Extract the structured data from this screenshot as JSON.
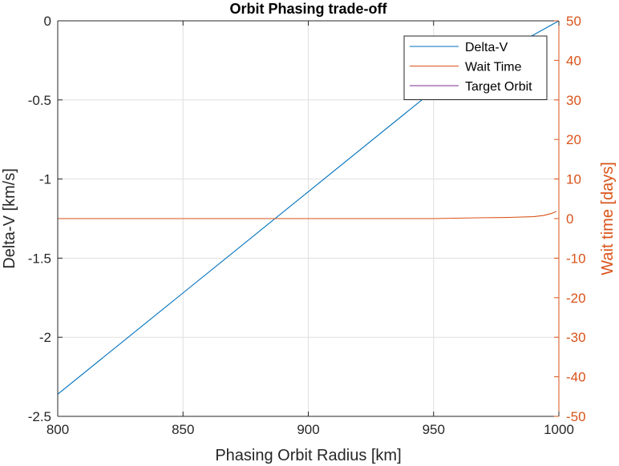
{
  "chart_data": {
    "type": "line",
    "title": "Orbit Phasing trade-off",
    "xlabel": "Phasing Orbit Radius [km]",
    "ylabel_left": "Delta-V  [km/s]",
    "ylabel_right": "Wait time [days]",
    "xlim": [
      800,
      1000
    ],
    "ylim_left": [
      -2.5,
      0
    ],
    "ylim_right": [
      -50,
      50
    ],
    "x_ticks": [
      800,
      850,
      900,
      950,
      1000
    ],
    "y_ticks_left": [
      0,
      -0.5,
      -1,
      -1.5,
      -2,
      -2.5
    ],
    "y_ticks_right": [
      50,
      40,
      30,
      20,
      10,
      0,
      -10,
      -20,
      -30,
      -40,
      -50
    ],
    "grid": true,
    "legend_location": "top-right",
    "series": [
      {
        "name": "Delta-V",
        "axis": "left",
        "color": "#0072BD",
        "x": [
          800,
          850,
          900,
          950,
          1000
        ],
        "y": [
          -2.36,
          -1.72,
          -1.08,
          -0.44,
          0.0
        ]
      },
      {
        "name": "Wait Time",
        "axis": "right",
        "color": "#D95319",
        "x": [
          800,
          850,
          900,
          950,
          968,
          980,
          990,
          994,
          997,
          999
        ],
        "y": [
          0,
          0,
          0,
          0,
          0.2,
          0.3,
          0.5,
          0.8,
          1.3,
          1.8
        ]
      },
      {
        "name": "Target Orbit",
        "axis": "left",
        "color": "#7E2F8E",
        "x": [],
        "y": []
      }
    ]
  },
  "colors": {
    "left_axis": "#262626",
    "right_axis": "#D95319",
    "grid": "#DFDFDF",
    "axes_box": "#262626"
  }
}
